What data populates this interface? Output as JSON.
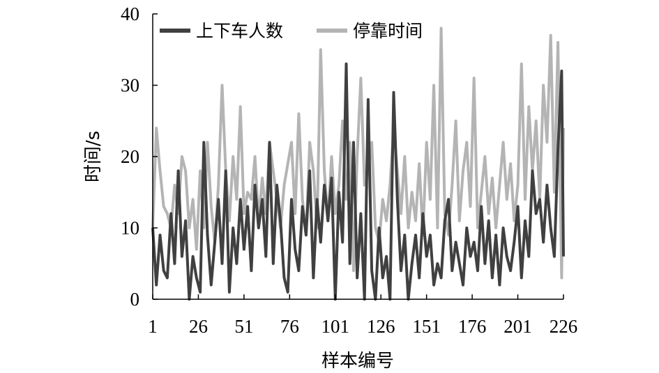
{
  "chart_data": {
    "type": "line",
    "title": "",
    "xlabel": "样本编号",
    "ylabel": "时间/s",
    "xlim": [
      1,
      226
    ],
    "ylim": [
      0,
      40
    ],
    "x_ticks": [
      1,
      26,
      51,
      76,
      101,
      126,
      151,
      176,
      201,
      226
    ],
    "y_ticks": [
      0,
      10,
      20,
      30,
      40
    ],
    "grid": false,
    "legend": "top-left",
    "series": [
      {
        "name": "上下车人数",
        "color": "#404040",
        "x": [
          1,
          3,
          5,
          7,
          9,
          11,
          13,
          15,
          17,
          19,
          21,
          23,
          25,
          27,
          29,
          31,
          33,
          35,
          37,
          39,
          41,
          43,
          45,
          47,
          49,
          51,
          53,
          55,
          57,
          59,
          61,
          63,
          65,
          67,
          69,
          71,
          73,
          75,
          77,
          79,
          81,
          83,
          85,
          87,
          89,
          91,
          93,
          95,
          97,
          99,
          101,
          103,
          105,
          107,
          109,
          111,
          113,
          115,
          117,
          119,
          121,
          123,
          125,
          127,
          129,
          131,
          133,
          135,
          137,
          139,
          141,
          143,
          145,
          147,
          149,
          151,
          153,
          155,
          157,
          159,
          161,
          163,
          165,
          167,
          169,
          171,
          173,
          175,
          177,
          179,
          181,
          183,
          185,
          187,
          189,
          191,
          193,
          195,
          197,
          199,
          201,
          203,
          205,
          207,
          209,
          211,
          213,
          215,
          217,
          219,
          221,
          223,
          225,
          226
        ],
        "y": [
          10,
          2,
          9,
          4,
          3,
          12,
          5,
          18,
          6,
          11,
          0,
          6,
          3,
          1,
          22,
          9,
          2,
          8,
          14,
          5,
          18,
          1,
          10,
          5,
          14,
          7,
          13,
          4,
          16,
          10,
          14,
          6,
          22,
          5,
          16,
          11,
          3,
          1,
          14,
          7,
          4,
          13,
          9,
          18,
          3,
          14,
          8,
          16,
          11,
          17,
          0,
          15,
          8,
          33,
          5,
          22,
          3,
          12,
          0,
          28,
          4,
          0,
          10,
          3,
          6,
          0,
          29,
          14,
          4,
          9,
          0,
          5,
          9,
          3,
          12,
          6,
          9,
          2,
          5,
          3,
          11,
          14,
          4,
          8,
          5,
          2,
          10,
          6,
          8,
          4,
          13,
          5,
          11,
          3,
          9,
          2,
          10,
          6,
          4,
          8,
          13,
          3,
          11,
          6,
          18,
          12,
          14,
          8,
          16,
          10,
          6,
          21,
          32,
          6
        ]
      },
      {
        "name": "停靠时间",
        "color": "#b4b4b4",
        "x": [
          1,
          3,
          5,
          7,
          9,
          11,
          13,
          15,
          17,
          19,
          21,
          23,
          25,
          27,
          29,
          31,
          33,
          35,
          37,
          39,
          41,
          43,
          45,
          47,
          49,
          51,
          53,
          55,
          57,
          59,
          61,
          63,
          65,
          67,
          69,
          71,
          73,
          75,
          77,
          79,
          81,
          83,
          85,
          87,
          89,
          91,
          93,
          95,
          97,
          99,
          101,
          103,
          105,
          107,
          109,
          111,
          113,
          115,
          117,
          119,
          121,
          123,
          125,
          127,
          129,
          131,
          133,
          135,
          137,
          139,
          141,
          143,
          145,
          147,
          149,
          151,
          153,
          155,
          157,
          159,
          161,
          163,
          165,
          167,
          169,
          171,
          173,
          175,
          177,
          179,
          181,
          183,
          185,
          187,
          189,
          191,
          193,
          195,
          197,
          199,
          201,
          203,
          205,
          207,
          209,
          211,
          213,
          215,
          217,
          219,
          221,
          223,
          225,
          226
        ],
        "y": [
          10,
          24,
          18,
          13,
          12,
          10,
          16,
          12,
          20,
          18,
          10,
          14,
          7,
          18,
          10,
          22,
          13,
          8,
          16,
          30,
          18,
          11,
          20,
          14,
          27,
          12,
          15,
          14,
          20,
          11,
          17,
          12,
          22,
          18,
          14,
          10,
          16,
          19,
          22,
          12,
          26,
          14,
          9,
          22,
          18,
          10,
          35,
          18,
          11,
          20,
          12,
          16,
          25,
          14,
          22,
          4,
          20,
          31,
          16,
          18,
          22,
          10,
          8,
          14,
          11,
          16,
          24,
          18,
          12,
          20,
          10,
          15,
          11,
          19,
          9,
          22,
          14,
          30,
          10,
          38,
          12,
          9,
          16,
          25,
          11,
          18,
          22,
          13,
          31,
          10,
          15,
          20,
          12,
          17,
          10,
          16,
          22,
          14,
          19,
          11,
          16,
          33,
          14,
          27,
          18,
          25,
          14,
          30,
          22,
          37,
          15,
          36,
          3,
          24
        ]
      }
    ]
  }
}
